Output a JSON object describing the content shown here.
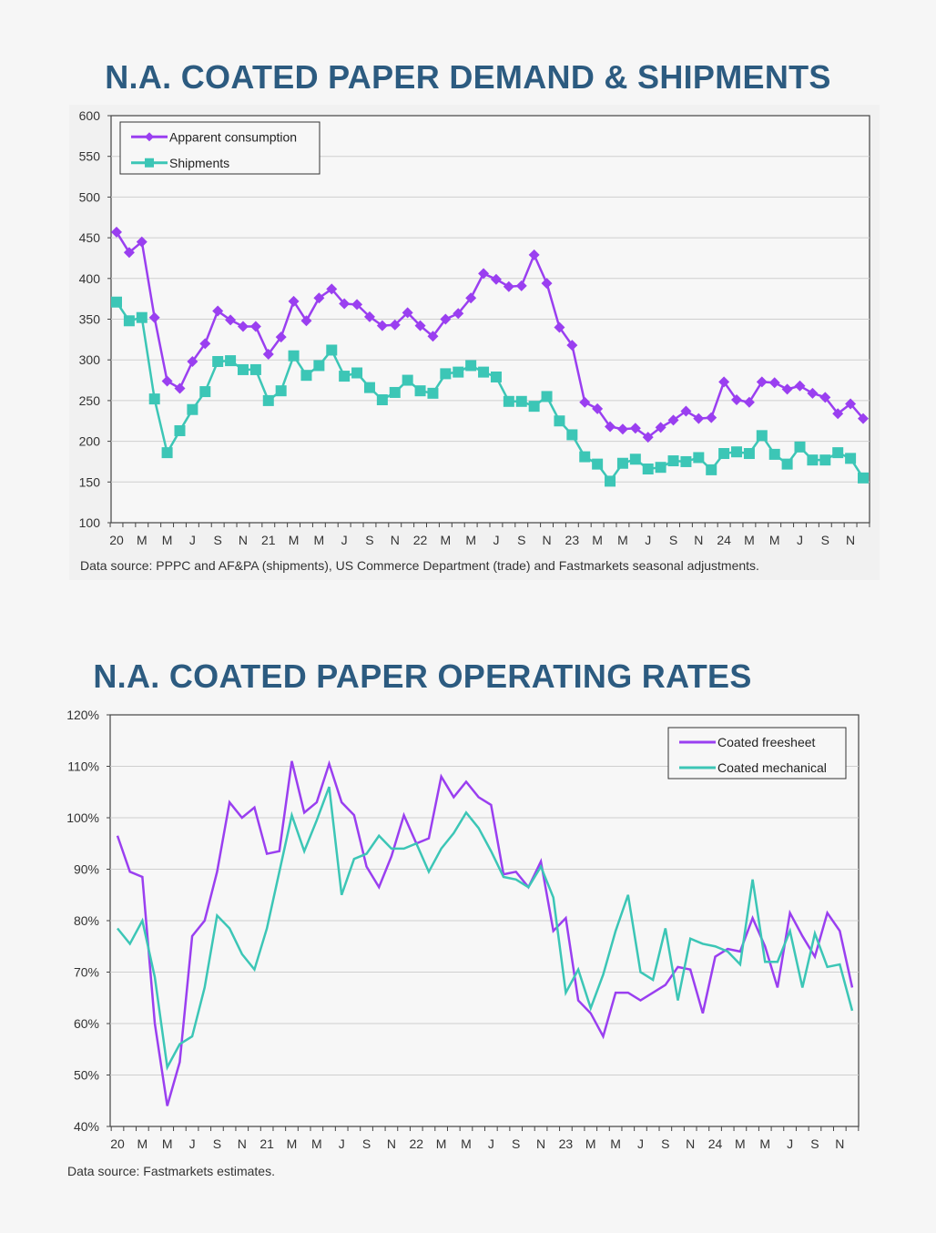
{
  "colors": {
    "freesheet_purple": "#9a3ff0",
    "teal": "#3cc6b6",
    "title": "#2c5b80"
  },
  "chart_data": [
    {
      "type": "line",
      "title": "N.A. COATED PAPER DEMAND & SHIPMENTS",
      "ylim": [
        100,
        600
      ],
      "yticks": [
        "100",
        "150",
        "200",
        "250",
        "300",
        "350",
        "400",
        "450",
        "500",
        "550",
        "600"
      ],
      "xtick_labels": [
        "20",
        "M",
        "M",
        "J",
        "S",
        "N",
        "21",
        "M",
        "M",
        "J",
        "S",
        "N",
        "22",
        "M",
        "M",
        "J",
        "S",
        "N",
        "23",
        "M",
        "M",
        "J",
        "S",
        "N",
        "24",
        "M",
        "M",
        "J",
        "S",
        "N"
      ],
      "x_period": "monthly, Jan 2020 – Dec 2024",
      "grid": true,
      "legend": "top-left",
      "series": [
        {
          "name": "Apparent consumption",
          "marker": "diamond",
          "values": [
            457,
            432,
            445,
            352,
            274,
            265,
            298,
            320,
            360,
            349,
            341,
            341,
            307,
            328,
            372,
            348,
            376,
            387,
            369,
            368,
            353,
            342,
            343,
            358,
            342,
            329,
            350,
            357,
            376,
            406,
            399,
            390,
            391,
            429,
            394,
            340,
            318,
            248,
            240,
            218,
            215,
            216,
            205,
            217,
            226,
            237,
            228,
            229,
            273,
            251,
            248,
            273,
            272,
            264,
            268,
            259,
            254,
            234,
            246,
            228
          ]
        },
        {
          "name": "Shipments",
          "marker": "square",
          "values": [
            371,
            348,
            352,
            252,
            186,
            213,
            239,
            261,
            298,
            299,
            288,
            288,
            250,
            262,
            305,
            281,
            293,
            312,
            280,
            284,
            266,
            251,
            260,
            275,
            262,
            259,
            283,
            285,
            293,
            285,
            279,
            249,
            249,
            243,
            255,
            225,
            208,
            181,
            172,
            151,
            173,
            178,
            166,
            168,
            176,
            175,
            180,
            165,
            185,
            187,
            185,
            207,
            184,
            172,
            193,
            177,
            177,
            186,
            179,
            155
          ]
        }
      ],
      "source": "Data source: PPPC and AF&PA (shipments), US Commerce Department (trade) and Fastmarkets seasonal adjustments."
    },
    {
      "type": "line",
      "title": "N.A. COATED PAPER OPERATING RATES",
      "ylim": [
        40,
        120
      ],
      "yticks": [
        "40%",
        "50%",
        "60%",
        "70%",
        "80%",
        "90%",
        "100%",
        "110%",
        "120%"
      ],
      "xtick_labels": [
        "20",
        "M",
        "M",
        "J",
        "S",
        "N",
        "21",
        "M",
        "M",
        "J",
        "S",
        "N",
        "22",
        "M",
        "M",
        "J",
        "S",
        "N",
        "23",
        "M",
        "M",
        "J",
        "S",
        "N",
        "24",
        "M",
        "M",
        "J",
        "S",
        "N"
      ],
      "x_period": "monthly, Jan 2020 – Dec 2024",
      "grid": true,
      "legend": "top-right",
      "series": [
        {
          "name": "Coated freesheet",
          "values": [
            96.5,
            89.5,
            88.5,
            60,
            44,
            52.5,
            77,
            80,
            89.5,
            103,
            100,
            102,
            93,
            93.5,
            111,
            101,
            103,
            110.5,
            103,
            100.5,
            90.5,
            86.5,
            92.5,
            100.5,
            95,
            96,
            108,
            104,
            107,
            104,
            102.5,
            89,
            89.5,
            86.5,
            91.5,
            78,
            80.5,
            64.5,
            62,
            57.5,
            66,
            66,
            64.5,
            66,
            67.5,
            71,
            70.5,
            62,
            73,
            74.5,
            74,
            80.5,
            75,
            67,
            81.5,
            77,
            73,
            81.5,
            78,
            67
          ]
        },
        {
          "name": "Coated mechanical",
          "values": [
            78.5,
            75.5,
            80,
            69,
            51.5,
            56,
            57.5,
            67,
            81,
            78.5,
            73.5,
            70.5,
            78.5,
            89.5,
            100.5,
            93.5,
            99.5,
            106,
            85,
            92,
            93,
            96.5,
            94,
            94,
            95,
            89.5,
            94,
            97,
            101,
            98,
            93.5,
            88.5,
            88,
            86.5,
            90.5,
            84.5,
            66,
            70.5,
            63,
            69.5,
            78,
            85,
            70,
            68.5,
            78.5,
            64.5,
            76.5,
            75.5,
            75,
            74,
            71.5,
            88,
            72,
            72,
            78,
            67,
            77.5,
            71,
            71.5,
            62.5
          ]
        }
      ],
      "source": "Data source: Fastmarkets estimates."
    }
  ]
}
